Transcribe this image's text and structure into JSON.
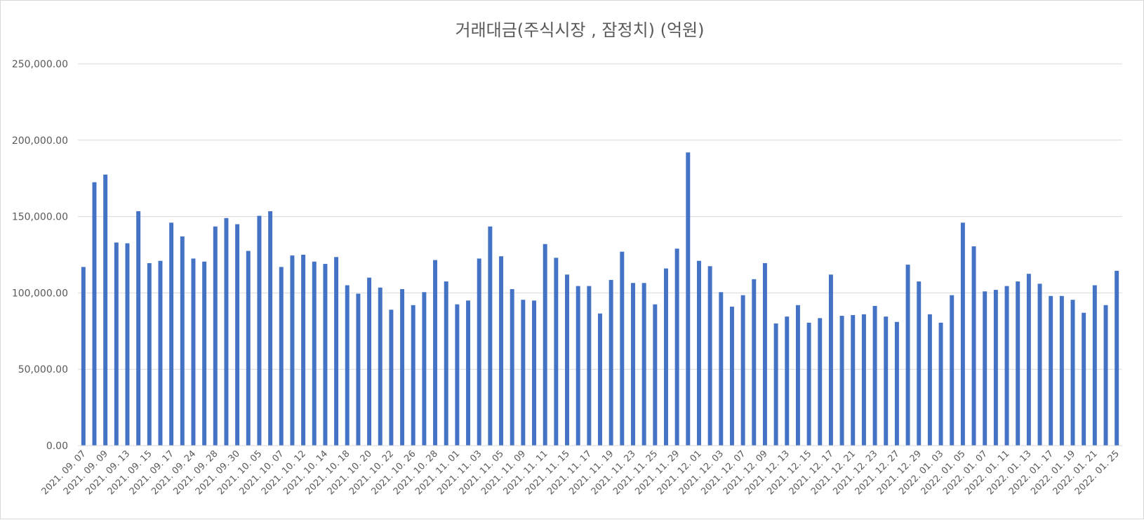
{
  "chart_data": {
    "type": "bar",
    "title": "거래대금(주식시장 , 잠정치) (억원)",
    "xlabel": "",
    "ylabel": "",
    "ylim": [
      0,
      250000
    ],
    "ytick_values": [
      0,
      50000,
      100000,
      150000,
      200000,
      250000
    ],
    "ytick_labels": [
      "0.00",
      "50,000.00",
      "100,000.00",
      "150,000.00",
      "200,000.00",
      "250,000.00"
    ],
    "grid": true,
    "legend": "none",
    "color": "#4472c4",
    "values": [
      117000,
      172500,
      177500,
      133000,
      132500,
      153500,
      119500,
      121000,
      146000,
      137000,
      122500,
      120500,
      143500,
      149000,
      145000,
      127500,
      150500,
      153500,
      117000,
      124500,
      125000,
      120500,
      119000,
      123500,
      105000,
      99500,
      110000,
      103500,
      89000,
      102500,
      92000,
      100500,
      121500,
      107500,
      92500,
      95000,
      122500,
      143500,
      124000,
      102500,
      95500,
      95000,
      132000,
      123000,
      112000,
      104500,
      104500,
      86500,
      108500,
      127000,
      106500,
      106500,
      92500,
      116000,
      129000,
      192000,
      121000,
      117500,
      100500,
      91000,
      98500,
      109000,
      119500,
      80000,
      84500,
      92000,
      80500,
      83500,
      112000,
      85000,
      85500,
      86000,
      91500,
      84500,
      81000,
      118500,
      107500,
      86000,
      80500,
      98500,
      146000,
      130500,
      101000,
      102000,
      104500,
      107500,
      112500,
      106000,
      98000,
      98000,
      95500,
      87000,
      105000,
      92000,
      114500
    ],
    "tick_labels": [
      "2021. 09. 07",
      "2021. 09. 09",
      "2021. 09. 13",
      "2021. 09. 15",
      "2021. 09. 17",
      "2021. 09. 24",
      "2021. 09. 28",
      "2021. 09. 30",
      "2021. 10. 05",
      "2021. 10. 07",
      "2021. 10. 12",
      "2021. 10. 14",
      "2021. 10. 18",
      "2021. 10. 20",
      "2021. 10. 22",
      "2021. 10. 26",
      "2021. 10. 28",
      "2021. 11. 01",
      "2021. 11. 03",
      "2021. 11. 05",
      "2021. 11. 09",
      "2021. 11. 11",
      "2021. 11. 15",
      "2021. 11. 17",
      "2021. 11. 19",
      "2021. 11. 23",
      "2021. 11. 25",
      "2021. 11. 29",
      "2021. 12. 01",
      "2021. 12. 03",
      "2021. 12. 07",
      "2021. 12. 09",
      "2021. 12. 13",
      "2021. 12. 15",
      "2021. 12. 17",
      "2021. 12. 21",
      "2021. 12. 23",
      "2021. 12. 27",
      "2021. 12. 29",
      "2022. 01. 03",
      "2022. 01. 05",
      "2022. 01. 07",
      "2022. 01. 11",
      "2022. 01. 13",
      "2022. 01. 17",
      "2022. 01. 19",
      "2022. 01. 21",
      "2022. 01. 25"
    ]
  }
}
